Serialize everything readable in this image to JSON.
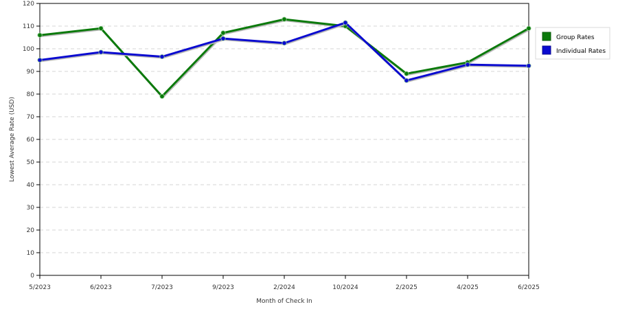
{
  "chart_data": {
    "type": "line",
    "title": "",
    "xlabel": "Month of Check In",
    "ylabel": "Lowest Average Rate (USD)",
    "categories": [
      "5/2023",
      "6/2023",
      "7/2023",
      "9/2023",
      "2/2024",
      "10/2024",
      "2/2025",
      "4/2025",
      "6/2025"
    ],
    "ylim": [
      0,
      120
    ],
    "yticks": [
      0,
      10,
      20,
      30,
      40,
      50,
      60,
      70,
      80,
      90,
      100,
      110,
      120
    ],
    "grid": true,
    "legend_position": "right",
    "series": [
      {
        "name": "Group Rates",
        "color": "#0b7a0b",
        "values": [
          106,
          109,
          79,
          107,
          113,
          110,
          89,
          94,
          109
        ]
      },
      {
        "name": "Individual Rates",
        "color": "#0a0ad0",
        "values": [
          95,
          98.5,
          96.5,
          104.5,
          102.5,
          111.5,
          86,
          93,
          92.5
        ]
      }
    ]
  }
}
